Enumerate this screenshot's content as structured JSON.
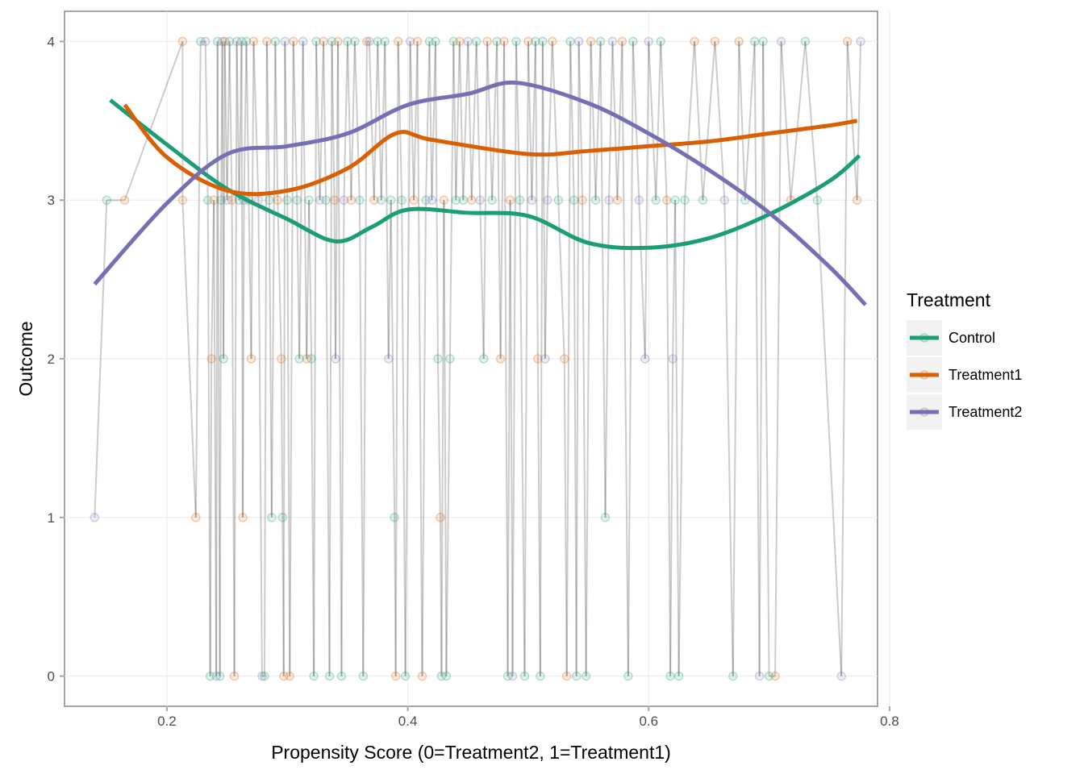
{
  "chart_data": {
    "type": "line",
    "xlabel": "Propensity Score (0=Treatment2, 1=Treatment1)",
    "ylabel": "Outcome",
    "xlim": [
      0.115,
      0.79
    ],
    "ylim": [
      -0.19,
      4.19
    ],
    "x_ticks": [
      0.2,
      0.4,
      0.6,
      0.8
    ],
    "x_tick_labels": [
      "0.2",
      "0.4",
      "0.6",
      "0.8"
    ],
    "y_ticks": [
      0,
      1,
      2,
      3,
      4
    ],
    "y_tick_labels": [
      "0",
      "1",
      "2",
      "3",
      "4"
    ],
    "grid": false,
    "legend": {
      "title": "Treatment",
      "position": "right"
    },
    "series": [
      {
        "name": "Control",
        "color": "#1b9e77",
        "x": [
          0.153,
          0.2,
          0.25,
          0.3,
          0.34,
          0.37,
          0.4,
          0.45,
          0.5,
          0.55,
          0.6,
          0.65,
          0.7,
          0.75,
          0.775
        ],
        "values": [
          3.63,
          3.35,
          3.07,
          2.88,
          2.74,
          2.83,
          2.94,
          2.92,
          2.9,
          2.73,
          2.7,
          2.76,
          2.91,
          3.12,
          3.28
        ]
      },
      {
        "name": "Treatment1",
        "color": "#d95f02",
        "x": [
          0.165,
          0.2,
          0.25,
          0.3,
          0.35,
          0.39,
          0.42,
          0.5,
          0.55,
          0.6,
          0.65,
          0.7,
          0.75,
          0.773
        ],
        "values": [
          3.6,
          3.27,
          3.06,
          3.06,
          3.2,
          3.42,
          3.38,
          3.29,
          3.31,
          3.34,
          3.37,
          3.42,
          3.47,
          3.5
        ]
      },
      {
        "name": "Treatment2",
        "color": "#7570b3",
        "x": [
          0.14,
          0.2,
          0.25,
          0.3,
          0.35,
          0.4,
          0.45,
          0.49,
          0.55,
          0.6,
          0.65,
          0.7,
          0.75,
          0.78
        ],
        "values": [
          2.47,
          2.98,
          3.29,
          3.34,
          3.42,
          3.6,
          3.67,
          3.74,
          3.61,
          3.42,
          3.19,
          2.92,
          2.58,
          2.34
        ]
      }
    ],
    "observations": [
      [
        0.14,
        1,
        2
      ],
      [
        0.15,
        3,
        0
      ],
      [
        0.165,
        3,
        1
      ],
      [
        0.213,
        4,
        1
      ],
      [
        0.213,
        3,
        1
      ],
      [
        0.224,
        1,
        1
      ],
      [
        0.228,
        4,
        0
      ],
      [
        0.232,
        4,
        2
      ],
      [
        0.234,
        3,
        0
      ],
      [
        0.236,
        0,
        0
      ],
      [
        0.237,
        2,
        1
      ],
      [
        0.239,
        3,
        1
      ],
      [
        0.241,
        0,
        2
      ],
      [
        0.242,
        4,
        0
      ],
      [
        0.244,
        0,
        0
      ],
      [
        0.245,
        3,
        0
      ],
      [
        0.246,
        4,
        2
      ],
      [
        0.247,
        2,
        0
      ],
      [
        0.248,
        4,
        1
      ],
      [
        0.25,
        3,
        2
      ],
      [
        0.252,
        4,
        0
      ],
      [
        0.254,
        3,
        1
      ],
      [
        0.256,
        0,
        1
      ],
      [
        0.258,
        4,
        2
      ],
      [
        0.26,
        3,
        0
      ],
      [
        0.262,
        4,
        0
      ],
      [
        0.263,
        1,
        1
      ],
      [
        0.264,
        3,
        2
      ],
      [
        0.266,
        4,
        0
      ],
      [
        0.268,
        3,
        0
      ],
      [
        0.27,
        2,
        1
      ],
      [
        0.272,
        4,
        1
      ],
      [
        0.276,
        3,
        2
      ],
      [
        0.279,
        0,
        2
      ],
      [
        0.281,
        0,
        0
      ],
      [
        0.283,
        4,
        1
      ],
      [
        0.285,
        3,
        0
      ],
      [
        0.287,
        1,
        0
      ],
      [
        0.29,
        4,
        0
      ],
      [
        0.292,
        3,
        1
      ],
      [
        0.295,
        2,
        1
      ],
      [
        0.296,
        1,
        0
      ],
      [
        0.297,
        0,
        1
      ],
      [
        0.298,
        4,
        2
      ],
      [
        0.3,
        3,
        0
      ],
      [
        0.302,
        0,
        1
      ],
      [
        0.305,
        4,
        1
      ],
      [
        0.308,
        3,
        0
      ],
      [
        0.31,
        2,
        0
      ],
      [
        0.313,
        4,
        2
      ],
      [
        0.316,
        2,
        1
      ],
      [
        0.318,
        3,
        0
      ],
      [
        0.32,
        2,
        0
      ],
      [
        0.322,
        0,
        0
      ],
      [
        0.324,
        4,
        0
      ],
      [
        0.327,
        3,
        2
      ],
      [
        0.33,
        4,
        1
      ],
      [
        0.332,
        3,
        0
      ],
      [
        0.335,
        0,
        0
      ],
      [
        0.337,
        4,
        0
      ],
      [
        0.339,
        3,
        1
      ],
      [
        0.34,
        2,
        2
      ],
      [
        0.342,
        4,
        1
      ],
      [
        0.345,
        0,
        0
      ],
      [
        0.347,
        3,
        2
      ],
      [
        0.35,
        4,
        0
      ],
      [
        0.353,
        3,
        1
      ],
      [
        0.356,
        4,
        0
      ],
      [
        0.36,
        3,
        0
      ],
      [
        0.363,
        0,
        0
      ],
      [
        0.366,
        4,
        1
      ],
      [
        0.368,
        4,
        2
      ],
      [
        0.372,
        3,
        1
      ],
      [
        0.375,
        4,
        0
      ],
      [
        0.378,
        3,
        0
      ],
      [
        0.381,
        4,
        0
      ],
      [
        0.384,
        2,
        2
      ],
      [
        0.386,
        3,
        0
      ],
      [
        0.389,
        1,
        0
      ],
      [
        0.39,
        0,
        1
      ],
      [
        0.392,
        4,
        1
      ],
      [
        0.395,
        3,
        0
      ],
      [
        0.398,
        0,
        0
      ],
      [
        0.402,
        4,
        2
      ],
      [
        0.405,
        3,
        1
      ],
      [
        0.408,
        4,
        1
      ],
      [
        0.412,
        0,
        1
      ],
      [
        0.415,
        3,
        0
      ],
      [
        0.418,
        4,
        0
      ],
      [
        0.42,
        3,
        2
      ],
      [
        0.423,
        4,
        0
      ],
      [
        0.425,
        2,
        0
      ],
      [
        0.427,
        1,
        1
      ],
      [
        0.428,
        0,
        0
      ],
      [
        0.43,
        3,
        1
      ],
      [
        0.432,
        0,
        0
      ],
      [
        0.435,
        2,
        0
      ],
      [
        0.438,
        4,
        0
      ],
      [
        0.44,
        3,
        0
      ],
      [
        0.443,
        4,
        1
      ],
      [
        0.446,
        3,
        0
      ],
      [
        0.45,
        4,
        2
      ],
      [
        0.453,
        3,
        1
      ],
      [
        0.457,
        4,
        0
      ],
      [
        0.46,
        3,
        2
      ],
      [
        0.463,
        2,
        0
      ],
      [
        0.466,
        4,
        1
      ],
      [
        0.47,
        3,
        0
      ],
      [
        0.474,
        4,
        0
      ],
      [
        0.477,
        2,
        1
      ],
      [
        0.48,
        4,
        1
      ],
      [
        0.483,
        0,
        0
      ],
      [
        0.485,
        3,
        1
      ],
      [
        0.487,
        0,
        2
      ],
      [
        0.49,
        4,
        0
      ],
      [
        0.493,
        3,
        0
      ],
      [
        0.497,
        0,
        0
      ],
      [
        0.5,
        4,
        1
      ],
      [
        0.503,
        3,
        2
      ],
      [
        0.506,
        4,
        0
      ],
      [
        0.508,
        2,
        1
      ],
      [
        0.51,
        0,
        0
      ],
      [
        0.512,
        4,
        0
      ],
      [
        0.514,
        2,
        2
      ],
      [
        0.516,
        3,
        2
      ],
      [
        0.52,
        4,
        1
      ],
      [
        0.525,
        3,
        0
      ],
      [
        0.53,
        2,
        1
      ],
      [
        0.532,
        0,
        1
      ],
      [
        0.535,
        4,
        0
      ],
      [
        0.538,
        3,
        0
      ],
      [
        0.54,
        0,
        0
      ],
      [
        0.542,
        4,
        2
      ],
      [
        0.545,
        3,
        1
      ],
      [
        0.548,
        0,
        0
      ],
      [
        0.552,
        4,
        1
      ],
      [
        0.556,
        3,
        0
      ],
      [
        0.56,
        4,
        0
      ],
      [
        0.564,
        1,
        0
      ],
      [
        0.567,
        3,
        2
      ],
      [
        0.57,
        4,
        2
      ],
      [
        0.574,
        3,
        1
      ],
      [
        0.578,
        4,
        1
      ],
      [
        0.583,
        0,
        0
      ],
      [
        0.587,
        4,
        0
      ],
      [
        0.592,
        3,
        2
      ],
      [
        0.597,
        2,
        2
      ],
      [
        0.6,
        4,
        2
      ],
      [
        0.606,
        3,
        0
      ],
      [
        0.61,
        4,
        0
      ],
      [
        0.615,
        3,
        1
      ],
      [
        0.618,
        0,
        0
      ],
      [
        0.62,
        2,
        2
      ],
      [
        0.622,
        3,
        0
      ],
      [
        0.625,
        0,
        0
      ],
      [
        0.63,
        3,
        0
      ],
      [
        0.638,
        4,
        1
      ],
      [
        0.645,
        3,
        0
      ],
      [
        0.655,
        4,
        1
      ],
      [
        0.663,
        3,
        2
      ],
      [
        0.67,
        0,
        0
      ],
      [
        0.675,
        4,
        1
      ],
      [
        0.68,
        3,
        0
      ],
      [
        0.688,
        4,
        0
      ],
      [
        0.692,
        0,
        2
      ],
      [
        0.695,
        4,
        0
      ],
      [
        0.7,
        0,
        0
      ],
      [
        0.705,
        0,
        1
      ],
      [
        0.71,
        4,
        2
      ],
      [
        0.718,
        3,
        1
      ],
      [
        0.73,
        4,
        0
      ],
      [
        0.74,
        3,
        0
      ],
      [
        0.76,
        0,
        2
      ],
      [
        0.765,
        4,
        1
      ],
      [
        0.773,
        3,
        1
      ],
      [
        0.776,
        4,
        2
      ]
    ]
  }
}
